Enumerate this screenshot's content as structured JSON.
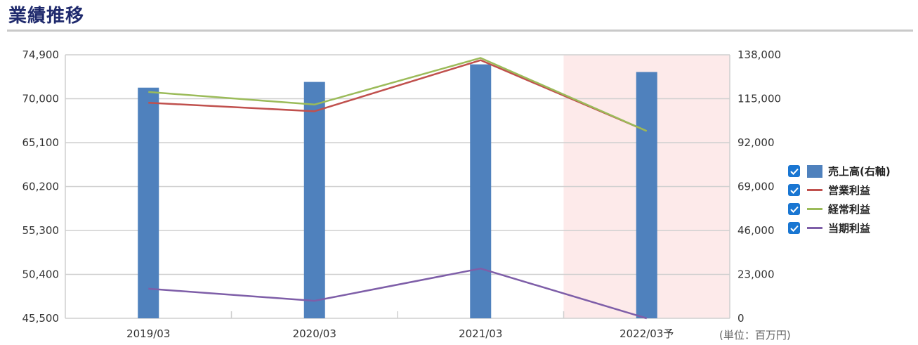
{
  "header": {
    "title": "業績推移"
  },
  "unit_label": "(単位：百万円)",
  "legend": {
    "items": [
      {
        "label": "売上高(右軸)",
        "color": "#4f81bd",
        "kind": "bar",
        "checked": true
      },
      {
        "label": "営業利益",
        "color": "#c0504d",
        "kind": "line",
        "checked": true
      },
      {
        "label": "経常利益",
        "color": "#9bbb59",
        "kind": "line",
        "checked": true
      },
      {
        "label": "当期利益",
        "color": "#7e5ea8",
        "kind": "line",
        "checked": true
      }
    ]
  },
  "chart_data": {
    "type": "bar",
    "categories": [
      "2019/03",
      "2020/03",
      "2021/03",
      "2022/03予"
    ],
    "forecast_highlight_color": "#fdeaea",
    "y_left": {
      "ticks": [
        "74,900",
        "70,000",
        "65,100",
        "60,200",
        "55,300",
        "50,400",
        "45,500"
      ],
      "ylim": [
        45500,
        74900
      ]
    },
    "y_right": {
      "ticks": [
        "138,000",
        "115,000",
        "92,000",
        "69,000",
        "46,000",
        "23,000",
        "0"
      ],
      "ylim": [
        0,
        138000
      ]
    },
    "series": [
      {
        "name": "売上高(右軸)",
        "type": "bar",
        "axis": "right",
        "color": "#4f81bd",
        "values": [
          120800,
          123800,
          133000,
          129000
        ]
      },
      {
        "name": "営業利益",
        "type": "line",
        "axis": "left",
        "color": "#c0504d",
        "values": [
          69550,
          68600,
          74300,
          66400
        ]
      },
      {
        "name": "経常利益",
        "type": "line",
        "axis": "left",
        "color": "#9bbb59",
        "values": [
          70750,
          69350,
          74550,
          66400
        ]
      },
      {
        "name": "当期利益",
        "type": "line",
        "axis": "left",
        "color": "#7e5ea8",
        "values": [
          48800,
          47450,
          51050,
          45500
        ]
      }
    ],
    "grid": true,
    "legend_position": "right"
  }
}
